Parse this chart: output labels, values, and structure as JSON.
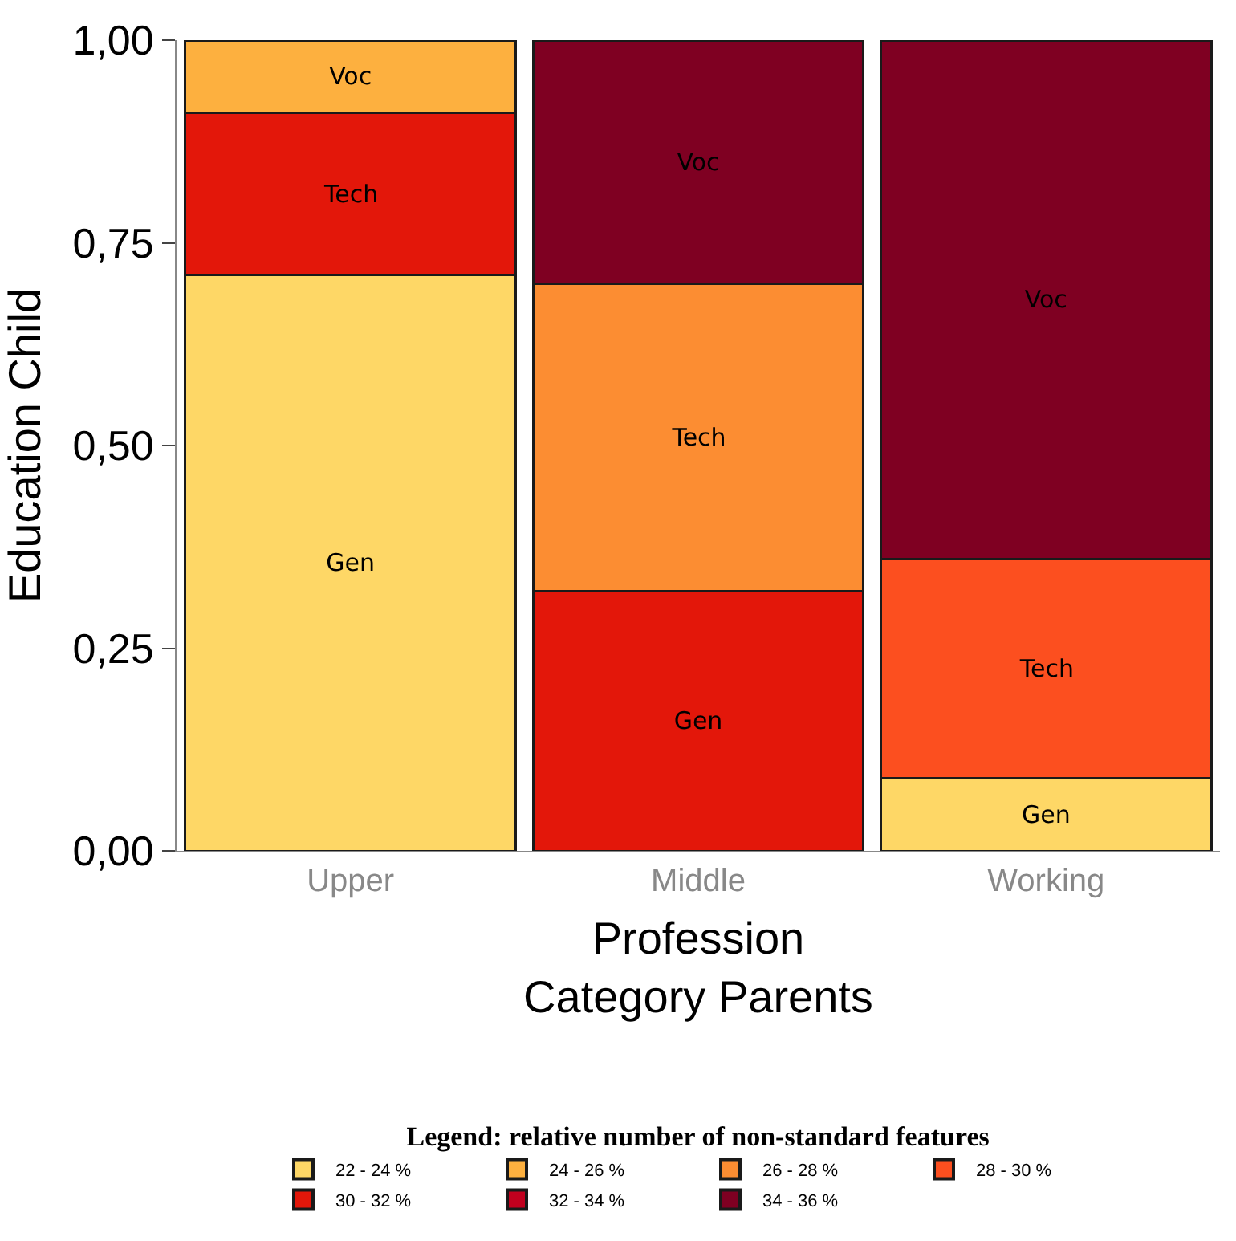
{
  "chart_data": {
    "type": "bar",
    "stacked": true,
    "xlabel": "Profession\nCategory Parents",
    "ylabel": "Education Child",
    "legend_title": "Legend: relative number of non-standard features",
    "categories": [
      "Upper",
      "Middle",
      "Working"
    ],
    "ylim": [
      0,
      1
    ],
    "yticks": [
      {
        "value": 0,
        "label": "0,00"
      },
      {
        "value": 0.25,
        "label": "0,25"
      },
      {
        "value": 0.5,
        "label": "0,50"
      },
      {
        "value": 0.75,
        "label": "0,75"
      },
      {
        "value": 1,
        "label": "1,00"
      }
    ],
    "legend": "bottom",
    "series": [
      {
        "colors": [
          "#fed766",
          "#e3170a",
          "#fed766"
        ],
        "values": [
          0.71,
          0.32,
          0.09
        ],
        "value_labels": [
          "Gen",
          "Gen",
          "Gen"
        ]
      },
      {
        "colors": [
          "#e3170a",
          "#fc8d32",
          "#fc4f1f"
        ],
        "values": [
          0.2,
          0.38,
          0.27
        ],
        "value_labels": [
          "Tech",
          "Tech",
          "Tech"
        ]
      },
      {
        "colors": [
          "#fdb03f",
          "#7f0022",
          "#7f0022"
        ],
        "values": [
          0.09,
          0.3,
          0.64
        ],
        "value_labels": [
          "Voc",
          "Voc",
          "Voc"
        ]
      },
      {
        "name": "22 - 24 %",
        "color": "#fed766",
        "values": [
          null,
          null,
          null
        ]
      },
      {
        "name": "24 - 26 %",
        "color": "#fdb03f",
        "values": [
          null,
          null,
          null
        ]
      },
      {
        "name": "26 - 28 %",
        "color": "#fc8d32",
        "values": [
          null,
          null,
          null
        ]
      },
      {
        "name": "28 - 30 %",
        "color": "#fc4f1f",
        "values": [
          null,
          null,
          null
        ]
      },
      {
        "name": "30 - 32 %",
        "color": "#e3170a",
        "values": [
          null,
          null,
          null
        ]
      },
      {
        "name": "32 - 34 %",
        "color": "#c1001e",
        "values": [
          null,
          null,
          null
        ]
      },
      {
        "name": "34 - 36 %",
        "color": "#7f0022",
        "values": [
          null,
          null,
          null
        ]
      }
    ]
  }
}
